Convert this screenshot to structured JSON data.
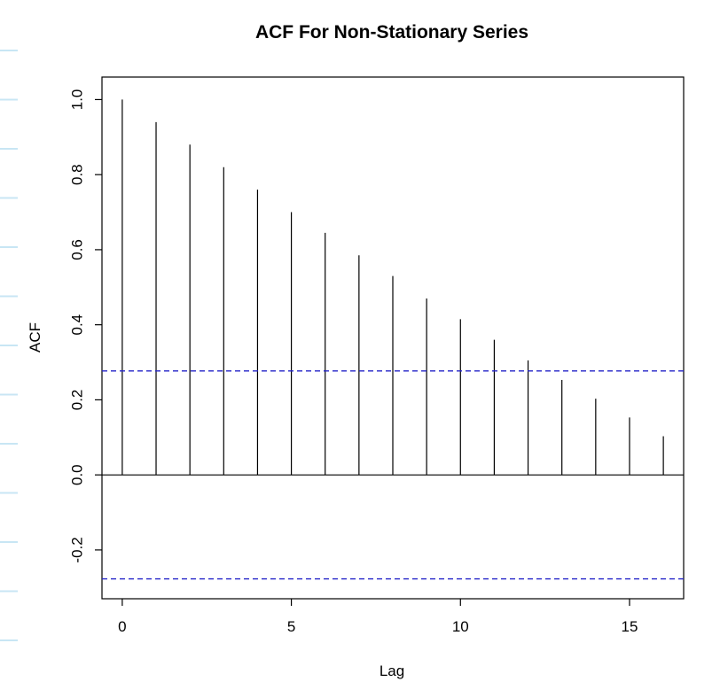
{
  "chart_data": {
    "type": "bar",
    "title": "ACF For Non-Stationary Series",
    "xlabel": "Lag",
    "ylabel": "ACF",
    "x": [
      0,
      1,
      2,
      3,
      4,
      5,
      6,
      7,
      8,
      9,
      10,
      11,
      12,
      13,
      14,
      15,
      16
    ],
    "values": [
      1.0,
      0.94,
      0.88,
      0.82,
      0.76,
      0.7,
      0.645,
      0.585,
      0.53,
      0.47,
      0.415,
      0.36,
      0.305,
      0.253,
      0.203,
      0.153,
      0.103
    ],
    "confidence_bound": 0.277,
    "xlim": [
      -0.6,
      16.6
    ],
    "ylim": [
      -0.33,
      1.06
    ],
    "x_ticks": [
      0,
      5,
      10,
      15
    ],
    "y_ticks": [
      -0.2,
      0.0,
      0.2,
      0.4,
      0.6,
      0.8,
      1.0
    ],
    "x_tick_labels": [
      "0",
      "5",
      "10",
      "15"
    ],
    "y_tick_labels": [
      "-0.2",
      "0.0",
      "0.2",
      "0.4",
      "0.6",
      "0.8",
      "1.0"
    ],
    "grid": false,
    "colors": {
      "bars": "#000000",
      "confidence": "#2323c8",
      "decoration": "#c8e6f4"
    }
  }
}
